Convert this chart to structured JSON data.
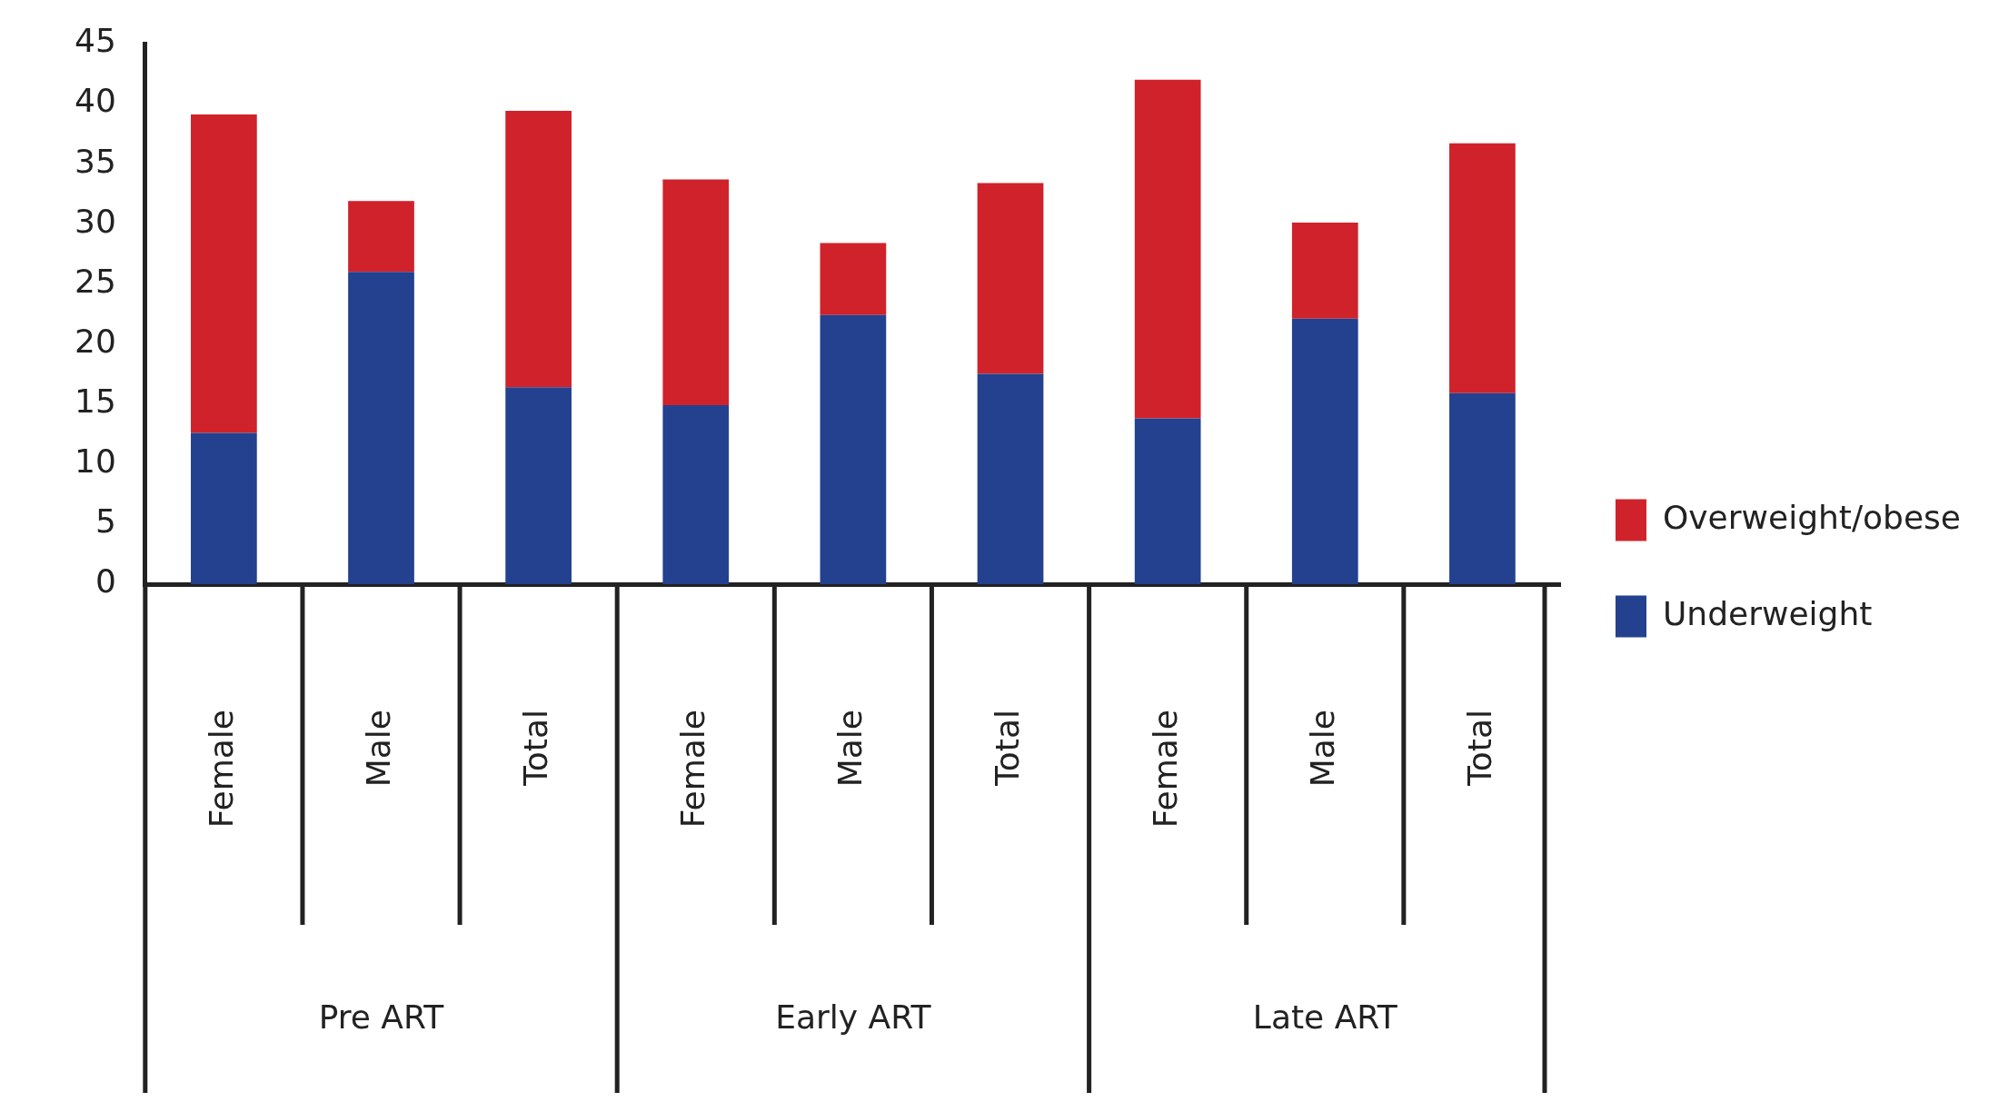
{
  "chart_data": {
    "type": "bar",
    "stacked": true,
    "categories": [
      "Female",
      "Male",
      "Total",
      "Female",
      "Male",
      "Total",
      "Female",
      "Male",
      "Total"
    ],
    "series": [
      {
        "name": "Underweight",
        "color": "#23418e",
        "values": [
          12.6,
          26.0,
          16.4,
          14.9,
          22.4,
          17.5,
          13.8,
          22.1,
          15.9
        ]
      },
      {
        "name": "Overweight/obese",
        "color": "#d0222b",
        "values": [
          26.5,
          5.9,
          23.0,
          18.8,
          6.0,
          15.9,
          28.2,
          8.0,
          20.8
        ]
      }
    ],
    "ylim": [
      0,
      45
    ],
    "yticks": [
      0,
      5,
      10,
      15,
      20,
      25,
      30,
      35,
      40,
      45
    ],
    "grid": false,
    "legend": "right",
    "annotations": [
      "Pre ART",
      "Early ART",
      "Late ART"
    ]
  }
}
